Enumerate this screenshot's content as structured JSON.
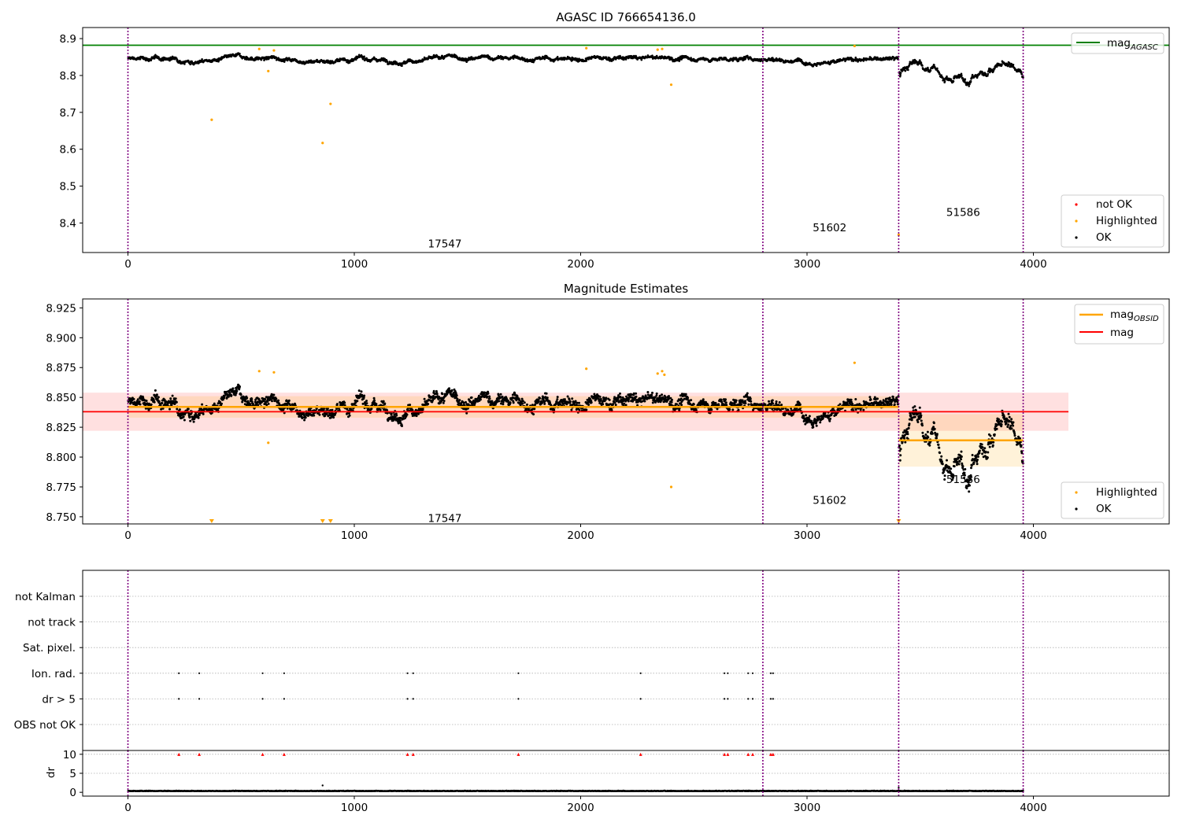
{
  "figure": {
    "background": "#ffffff"
  },
  "chart_data": [
    {
      "type": "scatter",
      "title": "AGASC ID 766654136.0",
      "xlim": [
        -200,
        4600
      ],
      "ylim": [
        8.32,
        8.93
      ],
      "xticks": [
        0,
        1000,
        2000,
        3000,
        4000
      ],
      "xtick_labels": [
        "0",
        "1000",
        "2000",
        "3000",
        "4000"
      ],
      "yticks": [
        8.4,
        8.5,
        8.6,
        8.7,
        8.8,
        8.9
      ],
      "ytick_labels": [
        "8.4",
        "8.5",
        "8.6",
        "8.7",
        "8.8",
        "8.9"
      ],
      "mag_agasc": 8.882,
      "obsid_boundaries": [
        0,
        2805,
        3405,
        3955
      ],
      "obsid_labels": [
        {
          "text": "17547",
          "x": 1400,
          "y": 8.345
        },
        {
          "text": "51602",
          "x": 3100,
          "y": 8.388
        },
        {
          "text": "51586",
          "x": 3690,
          "y": 8.43
        }
      ],
      "ok_segments": [
        {
          "x": [
            0,
            2805
          ],
          "level": 8.845,
          "noise": 0.008
        },
        {
          "x": [
            2805,
            3405
          ],
          "level": 8.843,
          "noise": 0.008
        },
        {
          "x": [
            3405,
            3955
          ],
          "level": 8.812,
          "noise": 0.02
        }
      ],
      "highlighted": [
        {
          "x": 370,
          "y": 8.68
        },
        {
          "x": 580,
          "y": 8.872
        },
        {
          "x": 620,
          "y": 8.812
        },
        {
          "x": 645,
          "y": 8.868
        },
        {
          "x": 860,
          "y": 8.617
        },
        {
          "x": 895,
          "y": 8.723
        },
        {
          "x": 2025,
          "y": 8.874
        },
        {
          "x": 2340,
          "y": 8.87
        },
        {
          "x": 2360,
          "y": 8.872
        },
        {
          "x": 2400,
          "y": 8.775
        },
        {
          "x": 3210,
          "y": 8.88
        },
        {
          "x": 3405,
          "y": 8.368
        }
      ],
      "legends": [
        {
          "position": "top-right",
          "entries": [
            {
              "label": "mag",
              "sub": "AGASC",
              "kind": "line",
              "color": "#008000"
            }
          ]
        },
        {
          "position": "bottom-right",
          "entries": [
            {
              "label": "not OK",
              "kind": "dot",
              "color": "#ff0000"
            },
            {
              "label": "Highlighted",
              "kind": "dot",
              "color": "#ffa500"
            },
            {
              "label": "OK",
              "kind": "dot",
              "color": "#000000"
            }
          ]
        }
      ]
    },
    {
      "type": "scatter",
      "title": "Magnitude Estimates",
      "xlim": [
        -200,
        4600
      ],
      "ylim": [
        8.744,
        8.9325
      ],
      "xticks": [
        0,
        1000,
        2000,
        3000,
        4000
      ],
      "xtick_labels": [
        "0",
        "1000",
        "2000",
        "3000",
        "4000"
      ],
      "yticks": [
        8.75,
        8.775,
        8.8,
        8.825,
        8.85,
        8.875,
        8.9,
        8.925
      ],
      "ytick_labels": [
        "8.750",
        "8.775",
        "8.800",
        "8.825",
        "8.850",
        "8.875",
        "8.900",
        "8.925"
      ],
      "mag": 8.838,
      "mag_band": [
        8.822,
        8.854
      ],
      "mag_line_x": [
        -200,
        4155
      ],
      "mag_obsid": [
        {
          "x": [
            0,
            2805
          ],
          "value": 8.842,
          "band": [
            8.833,
            8.851
          ]
        },
        {
          "x": [
            2805,
            3405
          ],
          "value": 8.842,
          "band": [
            8.833,
            8.851
          ]
        },
        {
          "x": [
            3405,
            3955
          ],
          "value": 8.814,
          "band": [
            8.792,
            8.836
          ]
        }
      ],
      "obsid_boundaries": [
        0,
        2805,
        3405,
        3955
      ],
      "obsid_labels": [
        {
          "text": "17547",
          "x": 1400,
          "y": 8.749
        },
        {
          "text": "51602",
          "x": 3100,
          "y": 8.764
        },
        {
          "text": "51586",
          "x": 3690,
          "y": 8.7815
        }
      ],
      "highlighted": [
        {
          "x": 580,
          "y": 8.872
        },
        {
          "x": 620,
          "y": 8.812
        },
        {
          "x": 645,
          "y": 8.871
        },
        {
          "x": 2025,
          "y": 8.874
        },
        {
          "x": 2340,
          "y": 8.87
        },
        {
          "x": 2360,
          "y": 8.872
        },
        {
          "x": 2370,
          "y": 8.869
        },
        {
          "x": 2400,
          "y": 8.775
        },
        {
          "x": 3210,
          "y": 8.879
        }
      ],
      "highlighted_offscale": [
        370,
        860,
        895,
        3405
      ],
      "legends": [
        {
          "position": "top-right",
          "entries": [
            {
              "label": "mag",
              "sub": "OBSID",
              "kind": "line",
              "color": "#ffa500"
            },
            {
              "label": "mag",
              "kind": "line",
              "color": "#ff0000"
            }
          ]
        },
        {
          "position": "bottom-right",
          "entries": [
            {
              "label": "Highlighted",
              "kind": "dot",
              "color": "#ffa500"
            },
            {
              "label": "OK",
              "kind": "dot",
              "color": "#000000"
            }
          ]
        }
      ]
    },
    {
      "type": "scatter",
      "title": "",
      "xlim": [
        -200,
        4600
      ],
      "ylim": [
        0,
        6
      ],
      "flag_rows": [
        "not Kalman",
        "not track",
        "Sat. pixel.",
        "Ion. rad.",
        "dr > 5",
        "OBS not OK"
      ],
      "flag_events_x": [
        225,
        315,
        595,
        690,
        1235,
        1260,
        1725,
        2265,
        2635,
        2650,
        2740,
        2760,
        2840,
        2850
      ],
      "flag_events_rows": [
        "Ion. rad.",
        "dr > 5"
      ],
      "obsid_boundaries": [
        0,
        2805,
        3405,
        3955
      ]
    },
    {
      "type": "scatter",
      "title": "",
      "ylabel": "dr",
      "xlim": [
        -200,
        4600
      ],
      "ylim": [
        -1,
        11
      ],
      "xticks": [
        0,
        1000,
        2000,
        3000,
        4000
      ],
      "xtick_labels": [
        "0",
        "1000",
        "2000",
        "3000",
        "4000"
      ],
      "yticks": [
        0,
        5,
        10
      ],
      "ytick_labels": [
        "0",
        "5",
        "10"
      ],
      "dr_typical": 0.3,
      "dr_outliers": [
        {
          "x": 860,
          "y": 1.8
        },
        {
          "x": 3405,
          "y": 1.2
        }
      ],
      "dr_marker_y": 10,
      "dr_marker_x": [
        225,
        315,
        595,
        690,
        1235,
        1260,
        1725,
        2265,
        2635,
        2650,
        2740,
        2760,
        2840,
        2850
      ],
      "obsid_boundaries": [
        0,
        2805,
        3405,
        3955
      ]
    }
  ]
}
